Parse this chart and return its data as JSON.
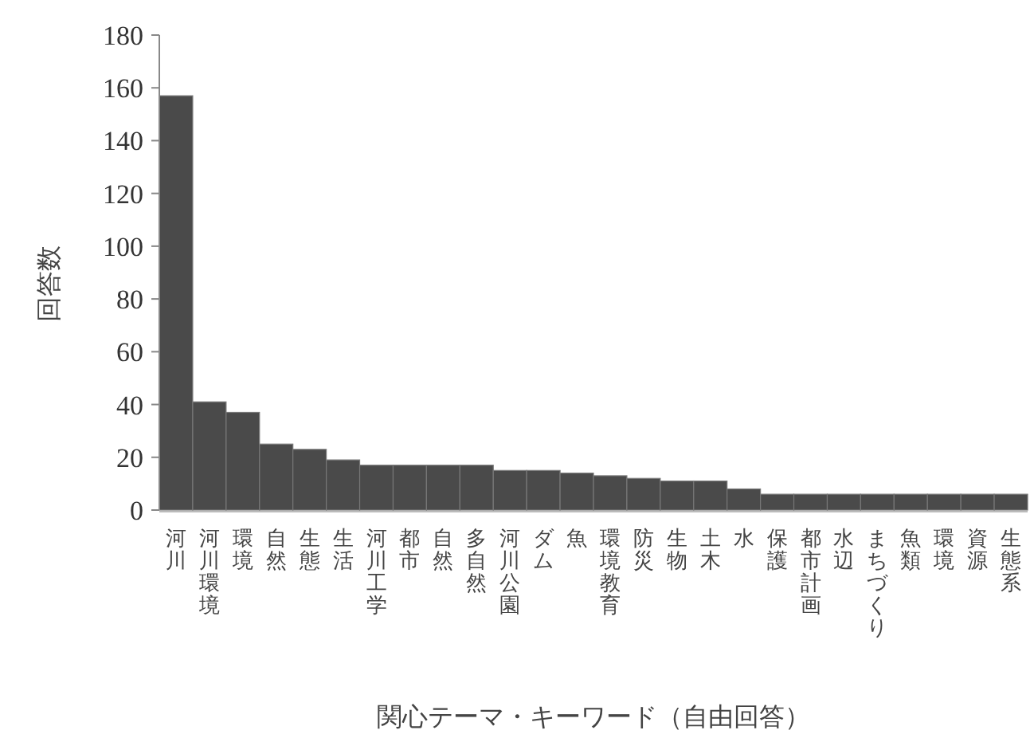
{
  "chart_data": {
    "type": "bar",
    "xlabel": "関心テーマ・キーワード（自由回答）",
    "ylabel": "回答数",
    "categories": [
      "河川",
      "河川環境",
      "環境",
      "自然",
      "生態",
      "生活",
      "河川工学",
      "都市",
      "自然",
      "多自然",
      "河川公園",
      "ダム",
      "魚",
      "環境教育",
      "防災",
      "生物",
      "土木",
      "水",
      "保護",
      "都市計画",
      "水辺",
      "まちづくり",
      "魚類",
      "環境",
      "資源",
      "生態系"
    ],
    "values": [
      157,
      41,
      37,
      25,
      23,
      19,
      17,
      17,
      17,
      17,
      15,
      15,
      14,
      13,
      12,
      11,
      11,
      8,
      6,
      6,
      6,
      6,
      6,
      6,
      6,
      6
    ],
    "color": "#4a4a4a",
    "ylim": [
      0,
      180
    ],
    "yticks": [
      0,
      20,
      40,
      60,
      80,
      100,
      120,
      140,
      160,
      180
    ],
    "grid": false
  }
}
